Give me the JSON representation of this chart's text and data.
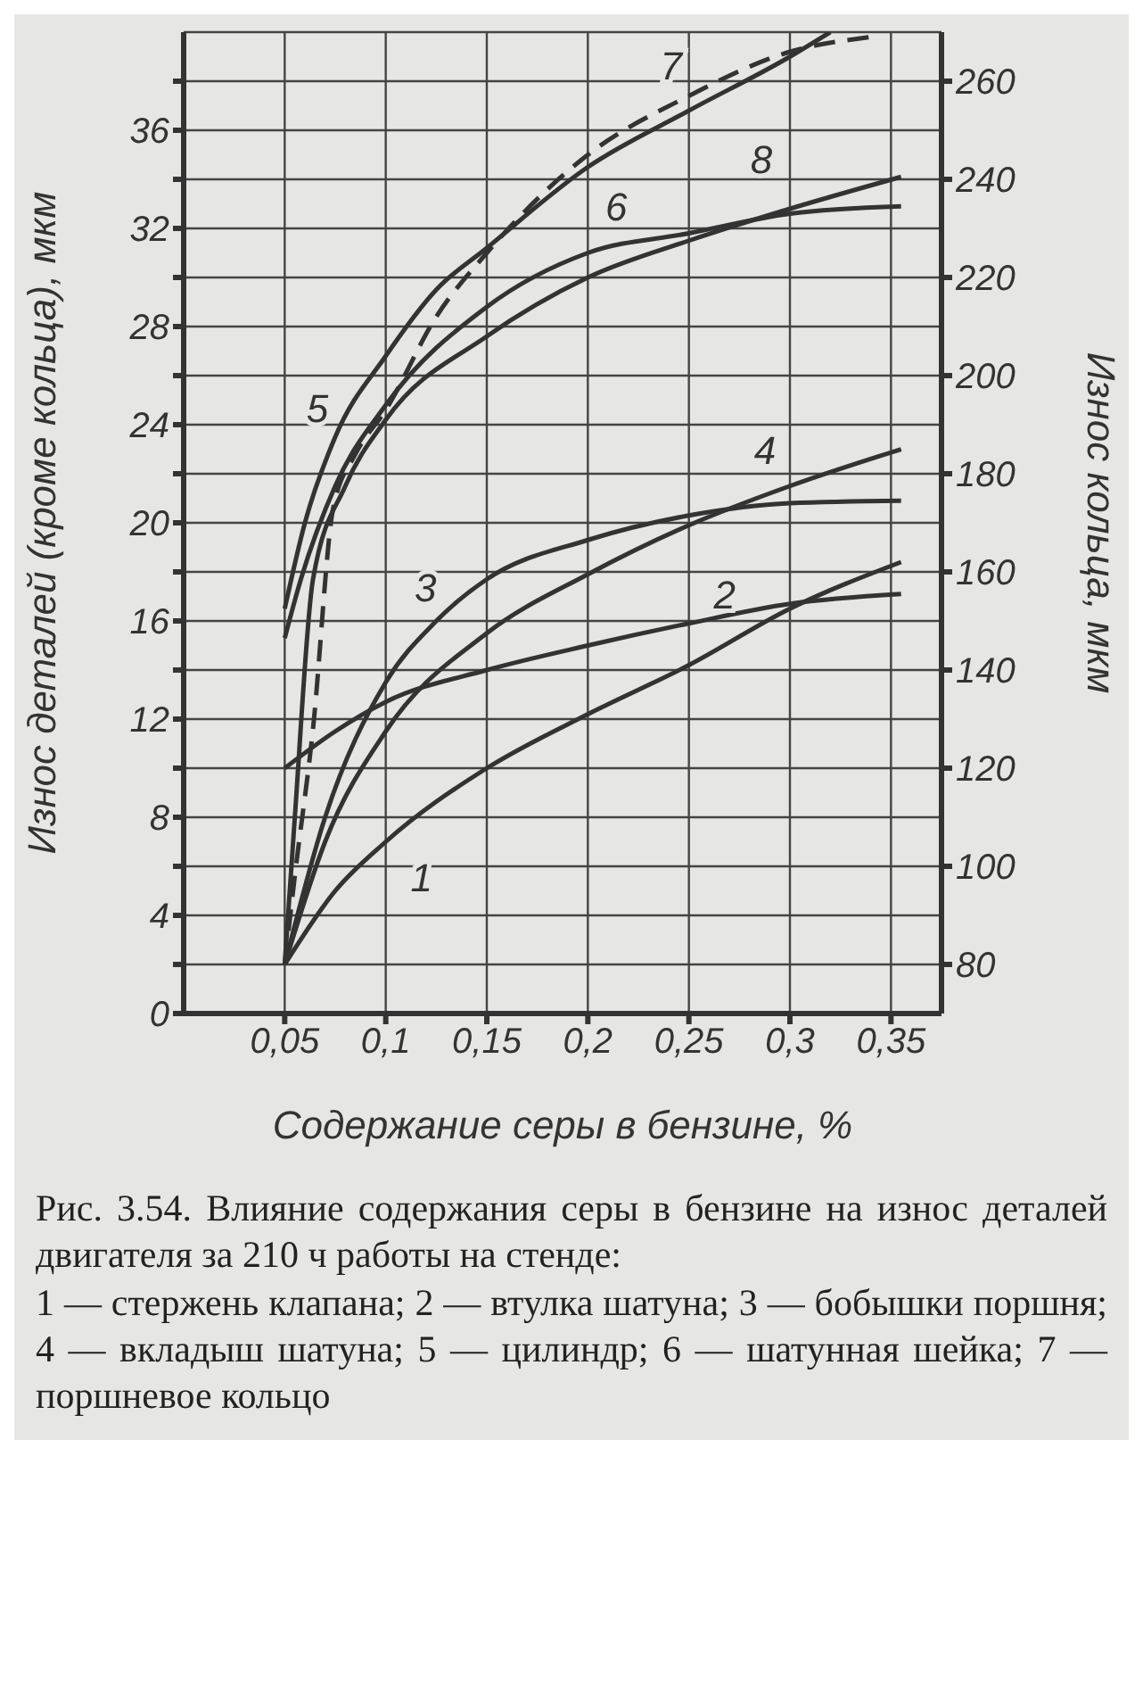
{
  "chart_data": {
    "type": "line",
    "xlabel": "Содержание серы в бензине, %",
    "ylabel": "Износ деталей (кроме кольца), мкм",
    "y2label": "Износ кольца, мкм",
    "xlim": [
      0,
      0.375
    ],
    "xticks": [
      {
        "value": 0.05,
        "label": "0,05"
      },
      {
        "value": 0.1,
        "label": "0,1"
      },
      {
        "value": 0.15,
        "label": "0,15"
      },
      {
        "value": 0.2,
        "label": "0,2"
      },
      {
        "value": 0.25,
        "label": "0,25"
      },
      {
        "value": 0.3,
        "label": "0,3"
      },
      {
        "value": 0.35,
        "label": "0,35"
      }
    ],
    "ylim": [
      0,
      40
    ],
    "yticks": [
      0,
      {
        "value": 2,
        "label": null
      },
      4,
      {
        "value": 6,
        "label": null
      },
      8,
      {
        "value": 10,
        "label": null
      },
      12,
      {
        "value": 14,
        "label": null
      },
      16,
      {
        "value": 18,
        "label": null
      },
      20,
      {
        "value": 22,
        "label": null
      },
      24,
      {
        "value": 26,
        "label": null
      },
      28,
      {
        "value": 30,
        "label": null
      },
      32,
      {
        "value": 34,
        "label": null
      },
      36,
      {
        "value": 38,
        "label": null
      }
    ],
    "y2lim": [
      70,
      270
    ],
    "y2ticks": [
      80,
      100,
      120,
      140,
      160,
      180,
      200,
      220,
      240,
      260
    ],
    "grid": true,
    "line_style": "solid",
    "series": [
      {
        "name": "1",
        "color": "#333333",
        "x": [
          0.05,
          0.075,
          0.1,
          0.15,
          0.2,
          0.25,
          0.3,
          0.355
        ],
        "values": [
          2,
          5,
          7,
          10,
          12.2,
          14.2,
          16.5,
          18.4
        ]
      },
      {
        "name": "2",
        "color": "#333333",
        "x": [
          0.05,
          0.075,
          0.1,
          0.15,
          0.2,
          0.25,
          0.3,
          0.355
        ],
        "values": [
          10,
          11.5,
          12.7,
          14,
          15,
          15.9,
          16.7,
          17.1
        ]
      },
      {
        "name": "3",
        "color": "#333333",
        "x": [
          0.05,
          0.07,
          0.1,
          0.125,
          0.15,
          0.2,
          0.25,
          0.3,
          0.355
        ],
        "values": [
          2,
          8,
          13.5,
          16,
          17.7,
          19.3,
          20.3,
          20.8,
          20.9
        ]
      },
      {
        "name": "4",
        "color": "#333333",
        "x": [
          0.05,
          0.07,
          0.1,
          0.15,
          0.2,
          0.25,
          0.3,
          0.355
        ],
        "values": [
          2,
          7,
          11.5,
          15.5,
          17.9,
          19.9,
          21.5,
          23
        ]
      },
      {
        "name": "5",
        "color": "#333333",
        "x": [
          0.05,
          0.06,
          0.075,
          0.1,
          0.125,
          0.15,
          0.2,
          0.25,
          0.3,
          0.32
        ],
        "values": [
          16.5,
          20,
          23.5,
          26.8,
          29.5,
          31.2,
          34.5,
          36.8,
          39,
          40
        ]
      },
      {
        "name": "6",
        "color": "#333333",
        "x": [
          0.05,
          0.058,
          0.075,
          0.1,
          0.15,
          0.2,
          0.25,
          0.3,
          0.355
        ],
        "values": [
          15.3,
          17.7,
          21.5,
          24.8,
          28.8,
          31,
          31.8,
          32.6,
          32.9
        ]
      },
      {
        "name": "7",
        "color": "#333333",
        "axis": "y2",
        "line_style": "dashed",
        "x": [
          0.05,
          0.055,
          0.064,
          0.074,
          0.085,
          0.1,
          0.125,
          0.15,
          0.2,
          0.25,
          0.3,
          0.34
        ],
        "values": [
          80,
          98,
          128,
          173,
          184,
          193,
          212,
          225,
          245,
          257,
          266,
          269
        ]
      },
      {
        "name": "8",
        "color": "#333333",
        "x": [
          0.05,
          0.055,
          0.064,
          0.08,
          0.1,
          0.15,
          0.2,
          0.25,
          0.3,
          0.355
        ],
        "values": [
          2,
          8,
          17.7,
          21.5,
          24.2,
          27.6,
          30,
          31.5,
          32.8,
          34.1
        ]
      }
    ],
    "annotations": [
      "Рис. 3.54. Влияние содержания серы в бензине на износ деталей двигателя за 210 ч работы на стенде:",
      "1 — стержень клапана; 2 — втулка шатуна; 3 — бобышки поршня; 4 — вкладыш шатуна; 5 — цилиндр; 6 — шатунная шейка; 7 — поршневое кольцо"
    ]
  }
}
